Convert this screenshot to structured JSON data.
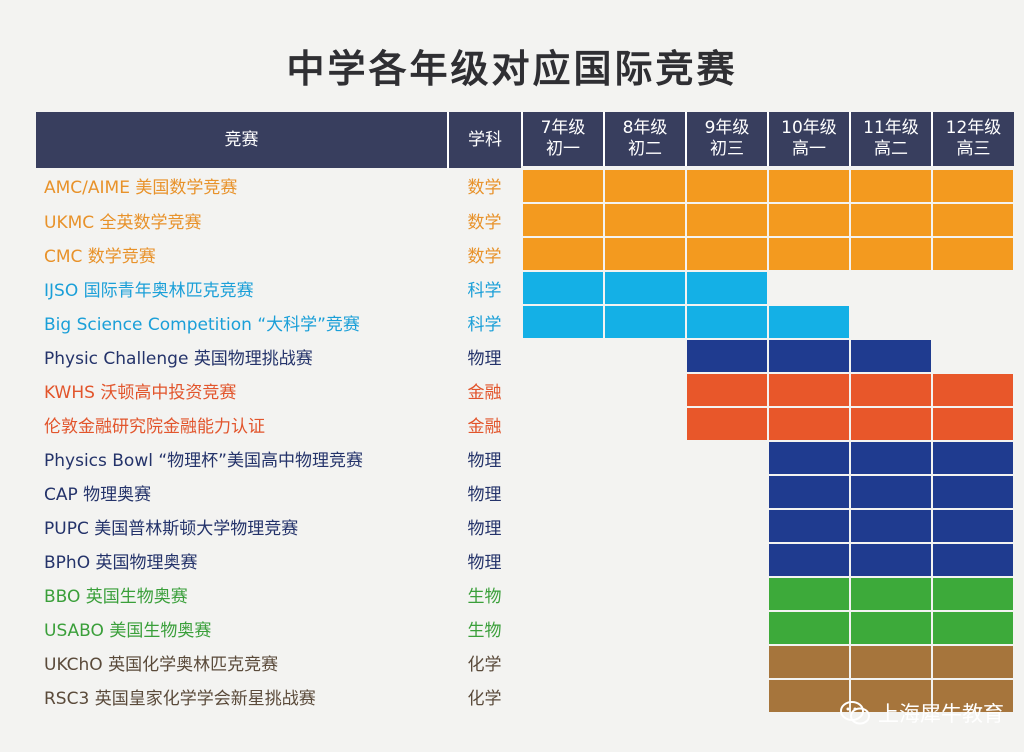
{
  "title": "中学各年级对应国际竞赛",
  "header": {
    "competition": "竞赛",
    "subject": "学科",
    "grades": [
      {
        "line1": "7年级",
        "line2": "初一"
      },
      {
        "line1": "8年级",
        "line2": "初二"
      },
      {
        "line1": "9年级",
        "line2": "初三"
      },
      {
        "line1": "10年级",
        "line2": "高一"
      },
      {
        "line1": "11年级",
        "line2": "高二"
      },
      {
        "line1": "12年级",
        "line2": "高三"
      }
    ]
  },
  "colors": {
    "header_bg": "#383e5e",
    "数学": "#f39a1f",
    "科学": "#14b0e6",
    "物理": "#1f3b8f",
    "金融": "#e8572a",
    "生物": "#3daa3a",
    "化学": "#a6753c"
  },
  "rows": [
    {
      "name": "AMC/AIME 美国数学竞赛",
      "subject": "数学",
      "text_color": "#e8922a",
      "grades": [
        1,
        1,
        1,
        1,
        1,
        1
      ]
    },
    {
      "name": "UKMC 全英数学竞赛",
      "subject": "数学",
      "text_color": "#e8922a",
      "grades": [
        1,
        1,
        1,
        1,
        1,
        1
      ]
    },
    {
      "name": "CMC 数学竞赛",
      "subject": "数学",
      "text_color": "#e8922a",
      "grades": [
        1,
        1,
        1,
        1,
        1,
        1
      ]
    },
    {
      "name": "IJSO 国际青年奥林匹克竞赛",
      "subject": "科学",
      "text_color": "#1a9fd8",
      "grades": [
        1,
        1,
        1,
        0,
        0,
        0
      ]
    },
    {
      "name": "Big Science Competition “大科学”竞赛",
      "subject": "科学",
      "text_color": "#1a9fd8",
      "grades": [
        1,
        1,
        1,
        1,
        0,
        0
      ]
    },
    {
      "name": "Physic Challenge 英国物理挑战赛",
      "subject": "物理",
      "text_color": "#24336a",
      "grades": [
        0,
        0,
        1,
        1,
        1,
        0
      ]
    },
    {
      "name": "KWHS 沃顿高中投资竞赛",
      "subject": "金融",
      "text_color": "#e2552c",
      "grades": [
        0,
        0,
        1,
        1,
        1,
        1
      ]
    },
    {
      "name": "伦敦金融研究院金融能力认证",
      "subject": "金融",
      "text_color": "#e2552c",
      "grades": [
        0,
        0,
        1,
        1,
        1,
        1
      ]
    },
    {
      "name": "Physics Bowl “物理杯”美国高中物理竞赛",
      "subject": "物理",
      "text_color": "#24336a",
      "grades": [
        0,
        0,
        0,
        1,
        1,
        1
      ]
    },
    {
      "name": "CAP 物理奥赛",
      "subject": "物理",
      "text_color": "#24336a",
      "grades": [
        0,
        0,
        0,
        1,
        1,
        1
      ]
    },
    {
      "name": "PUPC 美国普林斯顿大学物理竞赛",
      "subject": "物理",
      "text_color": "#24336a",
      "grades": [
        0,
        0,
        0,
        1,
        1,
        1
      ]
    },
    {
      "name": "BPhO 英国物理奥赛",
      "subject": "物理",
      "text_color": "#24336a",
      "grades": [
        0,
        0,
        0,
        1,
        1,
        1
      ]
    },
    {
      "name": "BBO 英国生物奥赛",
      "subject": "生物",
      "text_color": "#3a9f3a",
      "grades": [
        0,
        0,
        0,
        1,
        1,
        1
      ]
    },
    {
      "name": "USABO 美国生物奥赛",
      "subject": "生物",
      "text_color": "#3a9f3a",
      "grades": [
        0,
        0,
        0,
        1,
        1,
        1
      ]
    },
    {
      "name": "UKChO 英国化学奥林匹克竞赛",
      "subject": "化学",
      "text_color": "#5a4a3a",
      "grades": [
        0,
        0,
        0,
        1,
        1,
        1
      ]
    },
    {
      "name": "RSC3 英国皇家化学学会新星挑战赛",
      "subject": "化学",
      "text_color": "#5a4a3a",
      "grades": [
        0,
        0,
        0,
        1,
        1,
        1
      ]
    }
  ],
  "watermark": {
    "text": "上海犀牛教育",
    "icon": "wechat-icon"
  }
}
